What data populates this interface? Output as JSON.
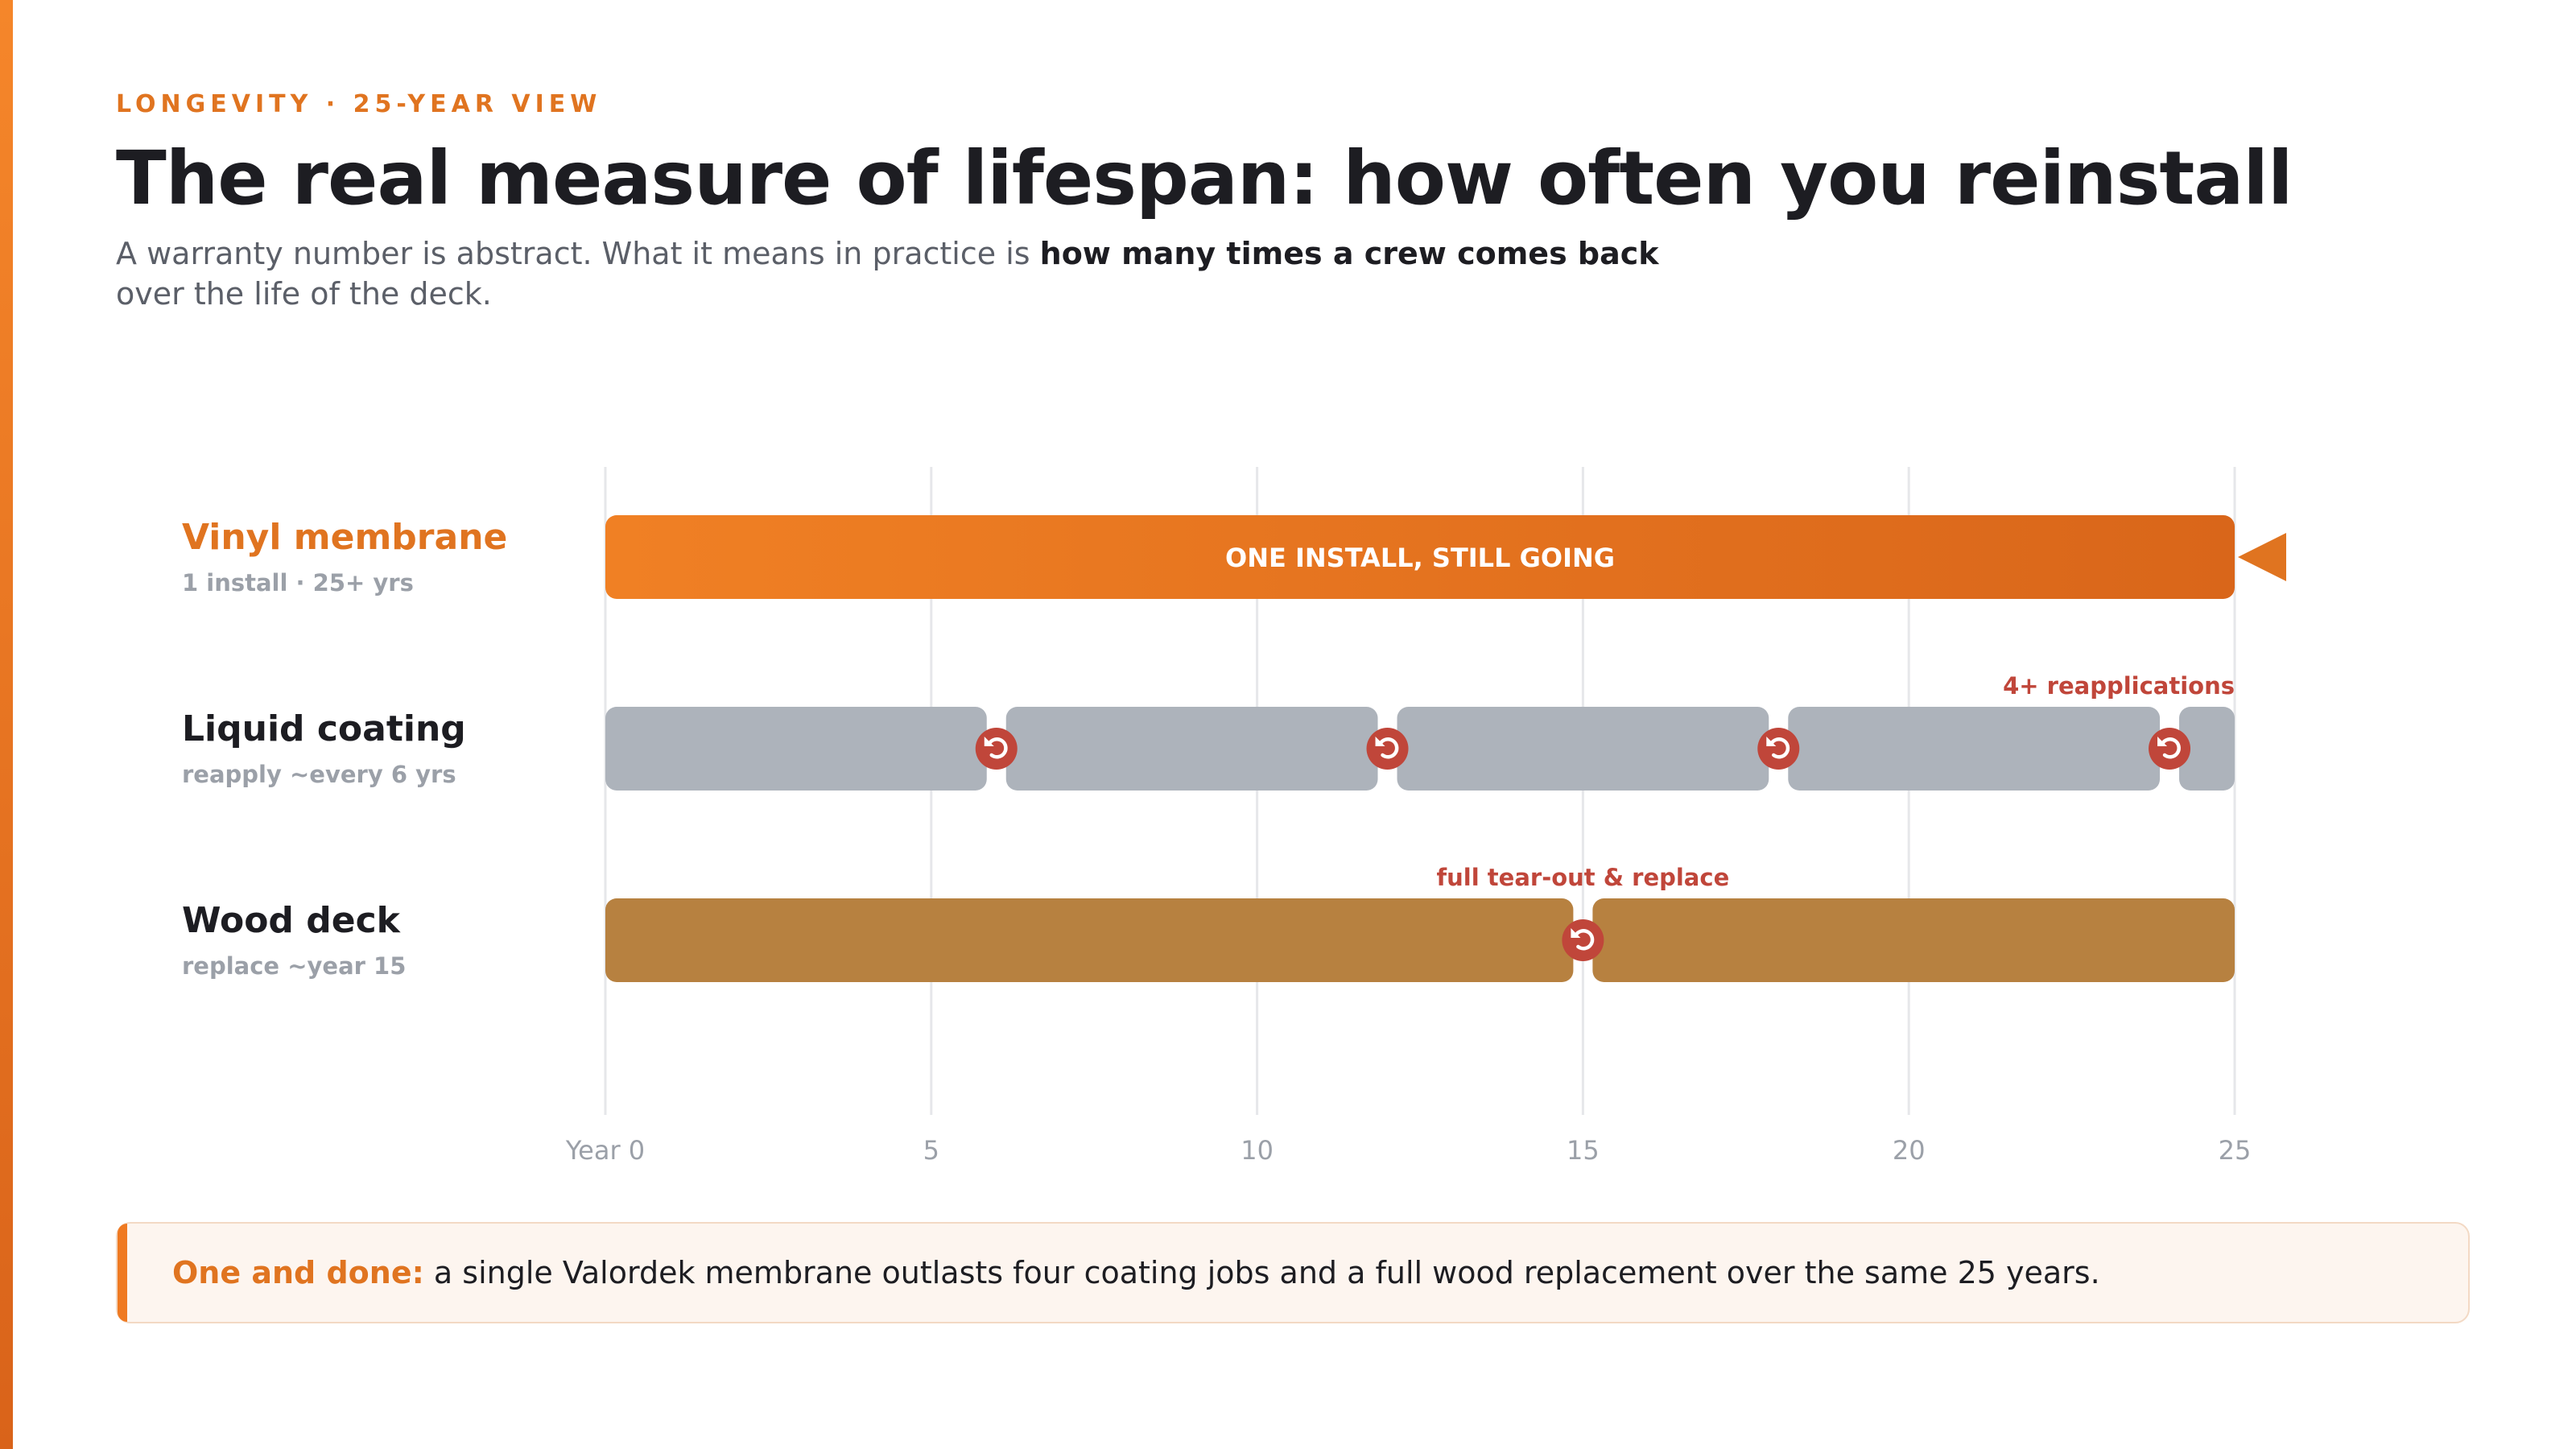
{
  "header": {
    "eyebrow": "LONGEVITY · 25-YEAR VIEW",
    "title": "The real measure of lifespan: how often you reinstall",
    "subtitle_pre": "A warranty number is abstract. What it means in practice is ",
    "subtitle_bold": "how many times a crew comes back",
    "subtitle_post": " over the life of the deck."
  },
  "chart_data": {
    "type": "timeline",
    "x_axis": {
      "min": 0,
      "max": 25,
      "ticks": [
        0,
        5,
        10,
        15,
        20,
        25
      ],
      "tick_labels": [
        "Year 0",
        "5",
        "10",
        "15",
        "20",
        "25"
      ],
      "grid": true
    },
    "series": [
      {
        "name": "Vinyl membrane",
        "sublabel": "1 install · 25+ yrs",
        "color": "#f08024",
        "color_end": "#d9661a",
        "segments": [
          [
            0,
            25
          ]
        ],
        "reinstalls": [],
        "bar_label": "ONE INSTALL, STILL GOING",
        "continues": true
      },
      {
        "name": "Liquid coating",
        "sublabel": "reapply ~every 6 yrs",
        "color": "#adb3bb",
        "segments": [
          [
            0,
            6
          ],
          [
            6,
            12
          ],
          [
            12,
            18
          ],
          [
            18,
            24
          ],
          [
            24,
            25
          ]
        ],
        "reinstalls": [
          6,
          12,
          18,
          24
        ],
        "annotation": "4+ reapplications"
      },
      {
        "name": "Wood deck",
        "sublabel": "replace ~year 15",
        "color": "#b78140",
        "segments": [
          [
            0,
            15
          ],
          [
            15,
            25
          ]
        ],
        "reinstalls": [
          15
        ],
        "annotation": "full tear-out & replace"
      }
    ],
    "colors": {
      "accent": "#e07420",
      "reinstall_marker": "#c0463a",
      "annotation": "#c0463a",
      "label_muted": "#9ba0a8"
    }
  },
  "callout": {
    "lead": "One and done:",
    "text": " a single Valordek membrane outlasts four coating jobs and a full wood replacement over the same 25 years."
  }
}
